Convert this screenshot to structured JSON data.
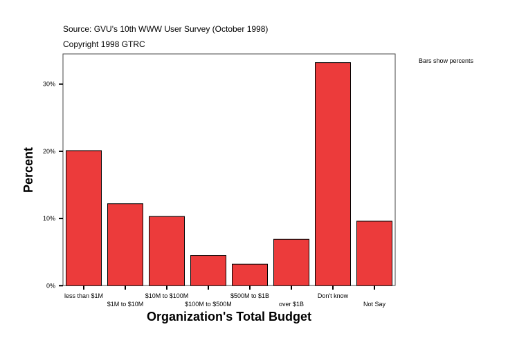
{
  "header": {
    "source": "Source: GVU's 10th WWW User Survey (October 1998)",
    "copyright": "Copyright 1998 GTRC"
  },
  "note": "Bars show percents",
  "chart_data": {
    "type": "bar",
    "title": "",
    "xlabel": "Organization's Total Budget",
    "ylabel": "Percent",
    "categories": [
      "less than $1M",
      "$1M to $10M",
      "$10M to $100M",
      "$100M to $500M",
      "$500M to $1B",
      "over $1B",
      "Don't know",
      "Not Say"
    ],
    "values": [
      20.1,
      12.2,
      10.3,
      4.5,
      3.2,
      6.9,
      33.2,
      9.6
    ],
    "ylim": [
      0,
      34.5
    ],
    "yticks": [
      0,
      10,
      20,
      30
    ],
    "ytick_labels": [
      "0%",
      "10%",
      "20%",
      "30%"
    ],
    "grid": false,
    "legend": "none",
    "bar_color": "#ec3b3b"
  }
}
